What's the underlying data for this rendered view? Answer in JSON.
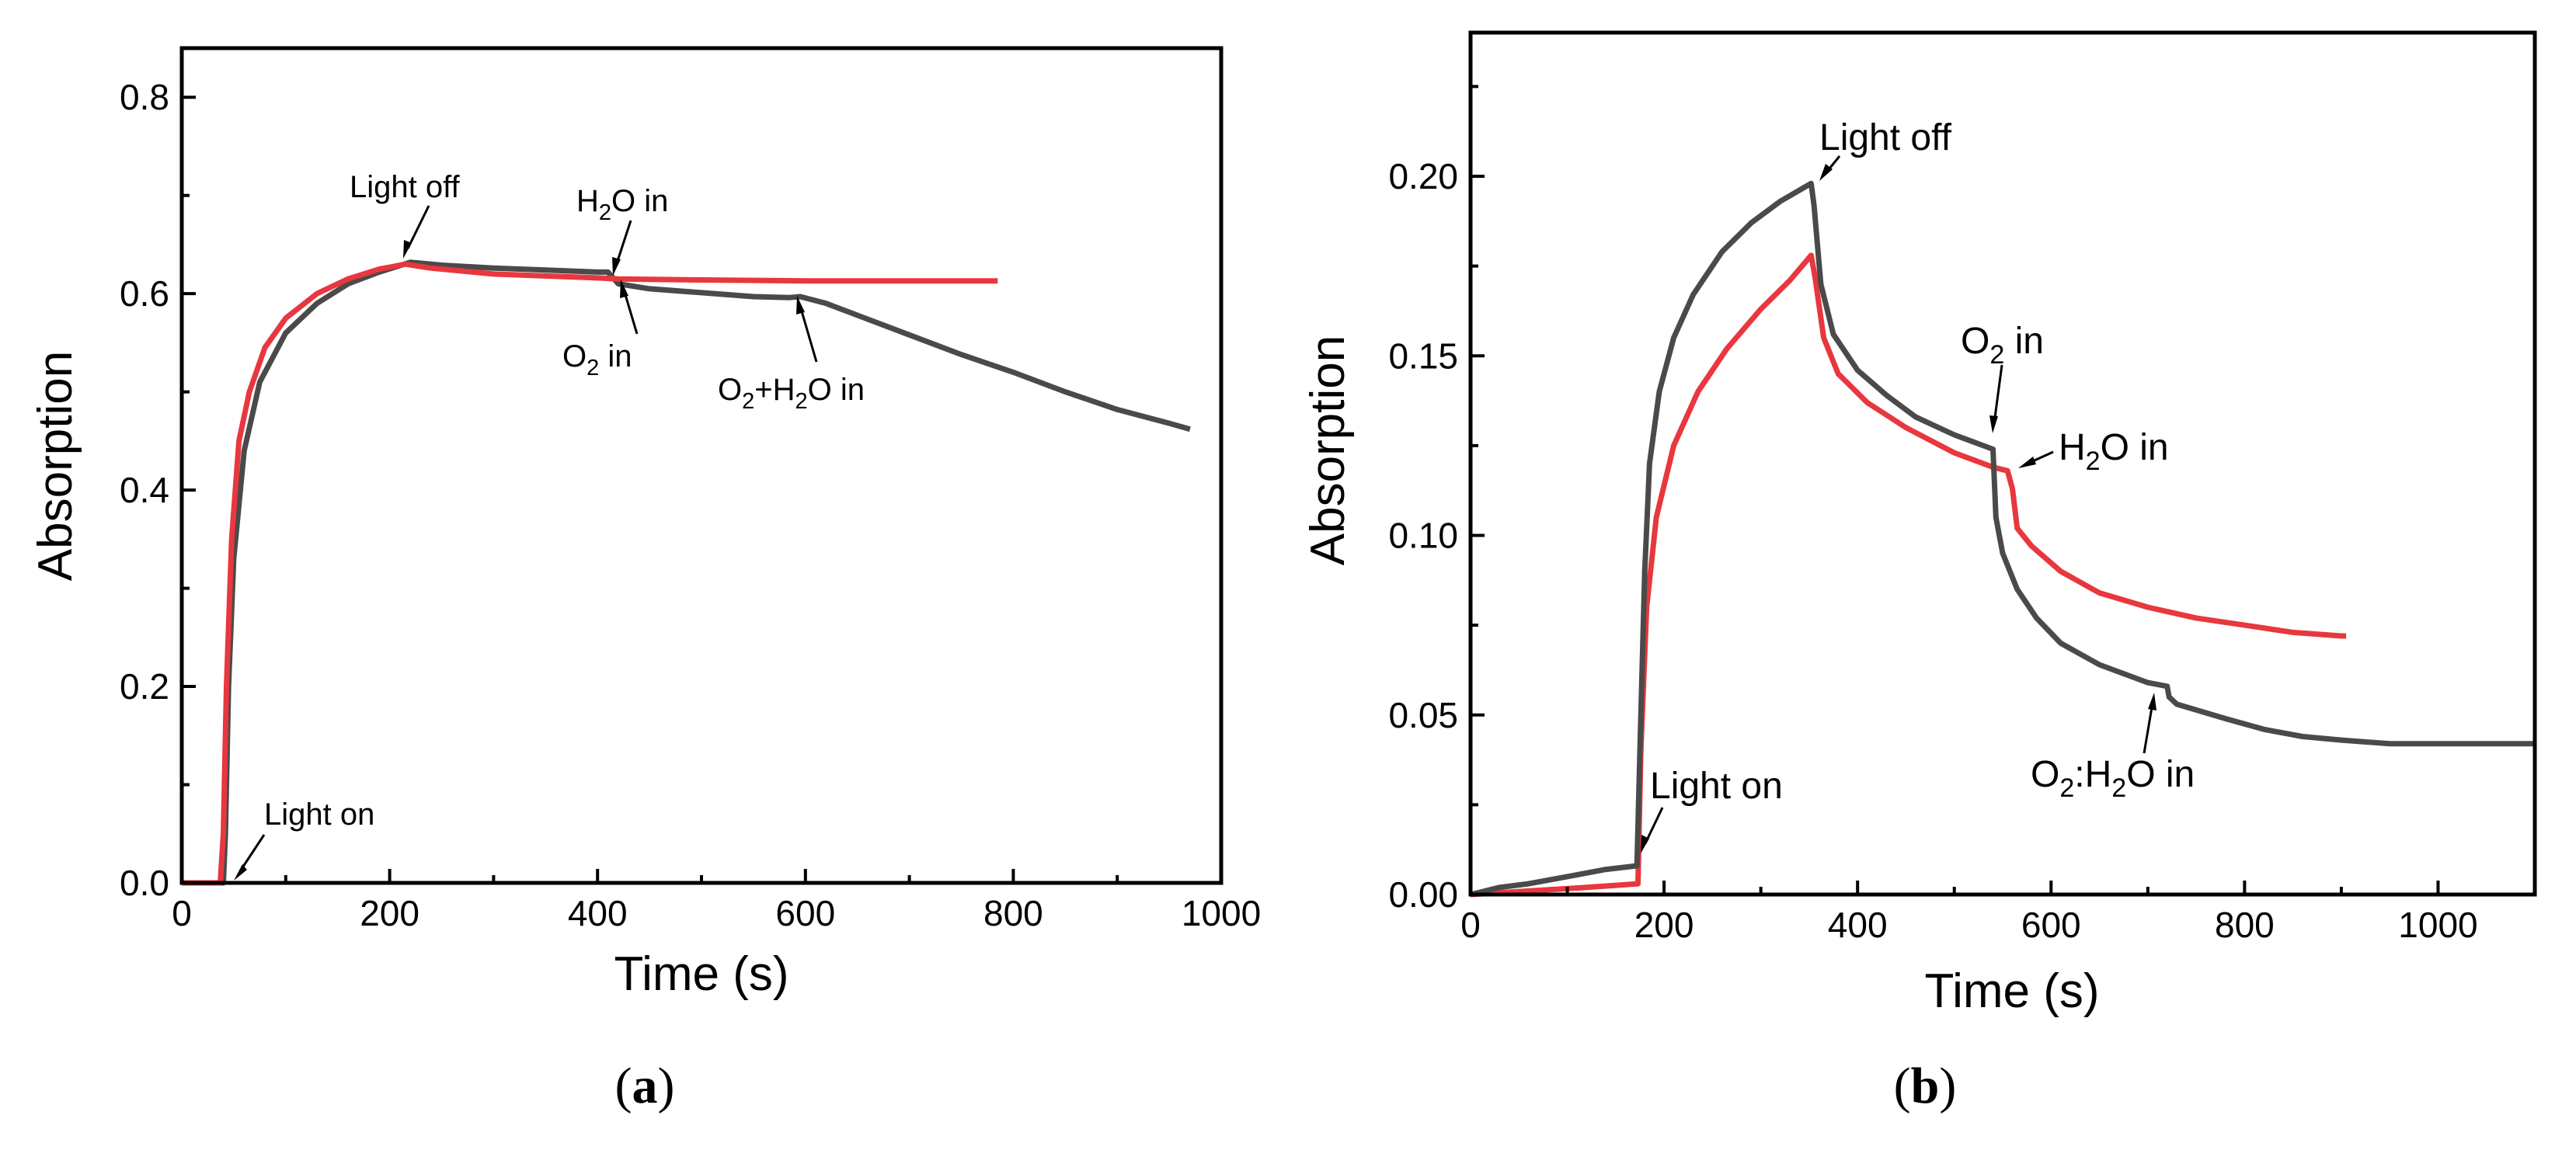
{
  "chart_data": [
    {
      "type": "line",
      "panel": "a",
      "caption_open": "(",
      "caption_letter": "a",
      "caption_close": ")",
      "xlabel": "Time (s)",
      "ylabel": "Absorption",
      "xlim": [
        0,
        1000
      ],
      "ylim": [
        0,
        0.85
      ],
      "x_ticks": [
        0,
        200,
        400,
        600,
        800,
        1000
      ],
      "x_tick_labels": [
        "0",
        "200",
        "400",
        "600",
        "800",
        "1000"
      ],
      "y_ticks": [
        0.0,
        0.2,
        0.4,
        0.6,
        0.8
      ],
      "y_tick_labels": [
        "0.0",
        "0.2",
        "0.4",
        "0.6",
        "0.8"
      ],
      "series": [
        {
          "name": "dark",
          "color": "#4a4a4a",
          "points": [
            [
              0,
              0
            ],
            [
              40,
              0
            ],
            [
              42,
              0.05
            ],
            [
              45,
              0.2
            ],
            [
              50,
              0.33
            ],
            [
              60,
              0.44
            ],
            [
              75,
              0.51
            ],
            [
              100,
              0.56
            ],
            [
              130,
              0.59
            ],
            [
              160,
              0.61
            ],
            [
              190,
              0.622
            ],
            [
              220,
              0.632
            ],
            [
              250,
              0.629
            ],
            [
              300,
              0.626
            ],
            [
              350,
              0.624
            ],
            [
              400,
              0.622
            ],
            [
              410,
              0.622
            ],
            [
              420,
              0.61
            ],
            [
              450,
              0.605
            ],
            [
              500,
              0.601
            ],
            [
              550,
              0.597
            ],
            [
              585,
              0.596
            ],
            [
              595,
              0.597
            ],
            [
              620,
              0.59
            ],
            [
              650,
              0.578
            ],
            [
              700,
              0.558
            ],
            [
              750,
              0.538
            ],
            [
              800,
              0.52
            ],
            [
              850,
              0.5
            ],
            [
              900,
              0.482
            ],
            [
              950,
              0.468
            ],
            [
              970,
              0.462
            ]
          ]
        },
        {
          "name": "red",
          "color": "#e8373e",
          "points": [
            [
              0,
              0
            ],
            [
              37,
              0
            ],
            [
              40,
              0.05
            ],
            [
              43,
              0.2
            ],
            [
              48,
              0.35
            ],
            [
              55,
              0.45
            ],
            [
              65,
              0.5
            ],
            [
              80,
              0.545
            ],
            [
              100,
              0.575
            ],
            [
              130,
              0.6
            ],
            [
              160,
              0.615
            ],
            [
              190,
              0.625
            ],
            [
              215,
              0.63
            ],
            [
              240,
              0.626
            ],
            [
              300,
              0.62
            ],
            [
              350,
              0.618
            ],
            [
              400,
              0.616
            ],
            [
              420,
              0.615
            ],
            [
              500,
              0.614
            ],
            [
              600,
              0.613
            ],
            [
              700,
              0.613
            ],
            [
              785,
              0.613
            ]
          ]
        }
      ],
      "annotations": [
        {
          "text": "Light on",
          "x": 42,
          "y": 0.0
        },
        {
          "text": "Light off",
          "x": 220,
          "y": 0.632
        },
        {
          "text_main": "H",
          "text_sub": "2",
          "text_rest": "O in",
          "x": 410,
          "y": 0.62
        },
        {
          "text_main": "O",
          "text_sub": "2",
          "text_rest": " in",
          "x": 410,
          "y": 0.61
        },
        {
          "text_main": "O",
          "text_sub": "2",
          "text_mid": "+H",
          "text_sub2": "2",
          "text_rest": "O in",
          "x": 590,
          "y": 0.597
        }
      ]
    },
    {
      "type": "line",
      "panel": "b",
      "caption_open": "(",
      "caption_letter": "b",
      "caption_close": ")",
      "xlabel": "Time (s)",
      "ylabel": "Absorption",
      "xlim": [
        0,
        1100
      ],
      "ylim": [
        0,
        0.24
      ],
      "x_ticks": [
        0,
        200,
        400,
        600,
        800,
        1000
      ],
      "x_tick_labels": [
        "0",
        "200",
        "400",
        "600",
        "800",
        "1000"
      ],
      "y_ticks": [
        0.0,
        0.05,
        0.1,
        0.15,
        0.2
      ],
      "y_tick_labels": [
        "0.00",
        "0.05",
        "0.10",
        "0.15",
        "0.20"
      ],
      "series": [
        {
          "name": "dark",
          "color": "#4a4a4a",
          "points": [
            [
              0,
              0
            ],
            [
              30,
              0.002
            ],
            [
              60,
              0.003
            ],
            [
              100,
              0.005
            ],
            [
              140,
              0.007
            ],
            [
              172,
              0.008
            ],
            [
              175,
              0.04
            ],
            [
              180,
              0.09
            ],
            [
              185,
              0.12
            ],
            [
              195,
              0.14
            ],
            [
              210,
              0.155
            ],
            [
              230,
              0.167
            ],
            [
              260,
              0.179
            ],
            [
              290,
              0.187
            ],
            [
              320,
              0.193
            ],
            [
              352,
              0.198
            ],
            [
              355,
              0.192
            ],
            [
              362,
              0.17
            ],
            [
              375,
              0.156
            ],
            [
              400,
              0.146
            ],
            [
              430,
              0.139
            ],
            [
              460,
              0.133
            ],
            [
              500,
              0.128
            ],
            [
              530,
              0.125
            ],
            [
              540,
              0.124
            ],
            [
              543,
              0.105
            ],
            [
              550,
              0.095
            ],
            [
              565,
              0.085
            ],
            [
              585,
              0.077
            ],
            [
              610,
              0.07
            ],
            [
              650,
              0.064
            ],
            [
              700,
              0.059
            ],
            [
              720,
              0.058
            ],
            [
              722,
              0.055
            ],
            [
              730,
              0.053
            ],
            [
              780,
              0.049
            ],
            [
              820,
              0.046
            ],
            [
              860,
              0.044
            ],
            [
              900,
              0.043
            ],
            [
              950,
              0.042
            ],
            [
              1000,
              0.042
            ],
            [
              1100,
              0.042
            ]
          ]
        },
        {
          "name": "red",
          "color": "#e8373e",
          "points": [
            [
              0,
              0
            ],
            [
              60,
              0.001
            ],
            [
              120,
              0.002
            ],
            [
              173,
              0.003
            ],
            [
              176,
              0.04
            ],
            [
              182,
              0.08
            ],
            [
              192,
              0.105
            ],
            [
              210,
              0.125
            ],
            [
              235,
              0.14
            ],
            [
              265,
              0.152
            ],
            [
              300,
              0.163
            ],
            [
              330,
              0.171
            ],
            [
              352,
              0.178
            ],
            [
              356,
              0.172
            ],
            [
              365,
              0.155
            ],
            [
              380,
              0.145
            ],
            [
              410,
              0.137
            ],
            [
              450,
              0.13
            ],
            [
              500,
              0.123
            ],
            [
              540,
              0.119
            ],
            [
              555,
              0.118
            ],
            [
              560,
              0.113
            ],
            [
              565,
              0.102
            ],
            [
              580,
              0.097
            ],
            [
              610,
              0.09
            ],
            [
              650,
              0.084
            ],
            [
              700,
              0.08
            ],
            [
              750,
              0.077
            ],
            [
              800,
              0.075
            ],
            [
              850,
              0.073
            ],
            [
              900,
              0.072
            ],
            [
              905,
              0.072
            ]
          ]
        }
      ],
      "annotations": [
        {
          "text": "Light on",
          "x": 175,
          "y": 0.009
        },
        {
          "text": "Light off",
          "x": 352,
          "y": 0.198
        },
        {
          "text_main": "O",
          "text_sub": "2",
          "text_rest": " in",
          "x": 541,
          "y": 0.125
        },
        {
          "text_main": "H",
          "text_sub": "2",
          "text_rest": "O in",
          "x": 557,
          "y": 0.118
        },
        {
          "text_main": "O",
          "text_sub": "2",
          "text_mid": ":H",
          "text_sub2": "2",
          "text_rest": "O in",
          "x": 722,
          "y": 0.057
        }
      ]
    }
  ]
}
